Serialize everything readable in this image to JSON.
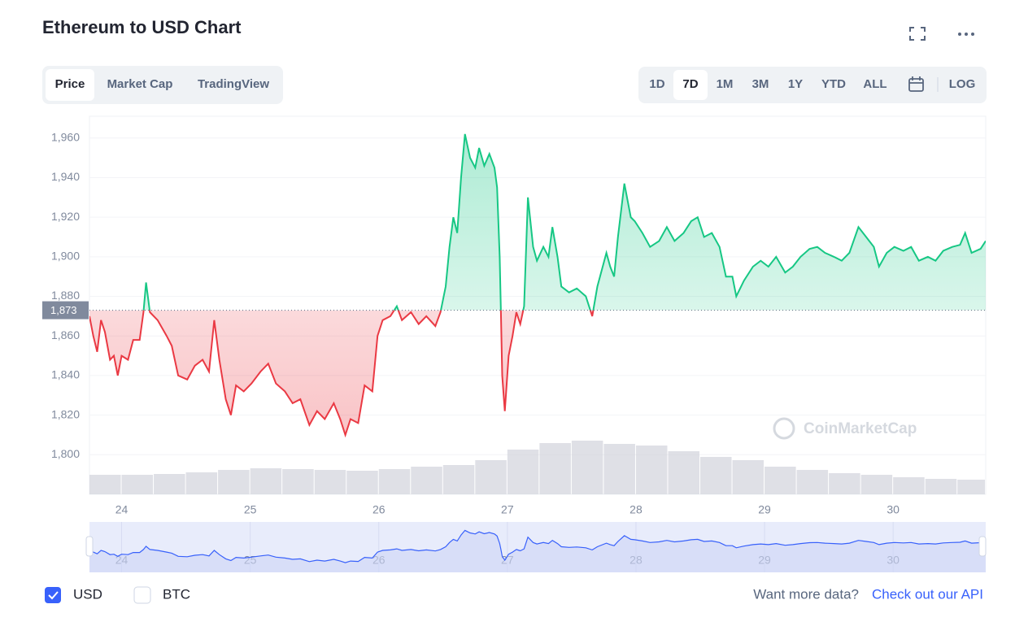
{
  "ui": {
    "title": "Ethereum to USD Chart",
    "tabs": [
      "Price",
      "Market Cap",
      "TradingView"
    ],
    "ranges": [
      "1D",
      "7D",
      "1M",
      "3M",
      "1Y",
      "YTD",
      "ALL"
    ],
    "log": "LOG",
    "currencies": [
      "USD",
      "BTC"
    ],
    "more_text": "Want more data?",
    "api_link": "Check out our API",
    "watermark": "CoinMarketCap"
  },
  "chart_data": {
    "type": "line",
    "series": [
      {
        "name": "Price",
        "x": [
          23.75,
          23.78,
          23.81,
          23.84,
          23.87,
          23.91,
          23.94,
          23.97,
          24.0,
          24.05,
          24.09,
          24.14,
          24.17,
          24.19,
          24.22,
          24.28,
          24.35,
          24.39,
          24.44,
          24.51,
          24.57,
          24.63,
          24.68,
          24.72,
          24.76,
          24.81,
          24.85,
          24.89,
          24.95,
          25.01,
          25.08,
          25.14,
          25.2,
          25.27,
          25.33,
          25.39,
          25.46,
          25.52,
          25.58,
          25.65,
          25.7,
          25.74,
          25.78,
          25.84,
          25.89,
          25.95,
          25.99,
          26.03,
          26.09,
          26.14,
          26.18,
          26.25,
          26.31,
          26.37,
          26.44,
          26.48,
          26.52,
          26.55,
          26.58,
          26.61,
          26.64,
          26.67,
          26.71,
          26.75,
          26.78,
          26.82,
          26.86,
          26.9,
          26.92,
          26.94,
          26.95,
          26.96,
          26.98,
          27.01,
          27.04,
          27.07,
          27.1,
          27.13,
          27.16,
          27.2,
          27.23,
          27.28,
          27.32,
          27.35,
          27.39,
          27.42,
          27.48,
          27.54,
          27.61,
          27.66,
          27.7,
          27.77,
          27.8,
          27.83,
          27.86,
          27.91,
          27.96,
          27.99,
          28.05,
          28.11,
          28.18,
          28.24,
          28.3,
          28.37,
          28.43,
          28.48,
          28.53,
          28.59,
          28.65,
          28.7,
          28.75,
          28.78,
          28.84,
          28.91,
          28.97,
          29.03,
          29.09,
          29.16,
          29.22,
          29.28,
          29.35,
          29.41,
          29.47,
          29.54,
          29.6,
          29.66,
          29.73,
          29.79,
          29.85,
          29.89,
          29.95,
          30.01,
          30.08,
          30.14,
          30.2,
          30.27,
          30.33,
          30.39,
          30.46,
          30.52,
          30.56,
          30.61,
          30.68,
          30.72
        ],
        "values": [
          1870,
          1860,
          1852,
          1868,
          1862,
          1848,
          1850,
          1840,
          1850,
          1848,
          1858,
          1858,
          1872,
          1887,
          1872,
          1868,
          1860,
          1855,
          1840,
          1838,
          1845,
          1848,
          1842,
          1868,
          1848,
          1828,
          1820,
          1835,
          1832,
          1836,
          1842,
          1846,
          1836,
          1832,
          1826,
          1828,
          1815,
          1822,
          1818,
          1826,
          1818,
          1810,
          1818,
          1816,
          1835,
          1832,
          1860,
          1868,
          1870,
          1875,
          1868,
          1872,
          1866,
          1870,
          1865,
          1872,
          1885,
          1905,
          1920,
          1912,
          1940,
          1962,
          1950,
          1945,
          1955,
          1946,
          1952,
          1945,
          1935,
          1900,
          1872,
          1840,
          1822,
          1850,
          1860,
          1872,
          1866,
          1875,
          1930,
          1905,
          1898,
          1905,
          1900,
          1915,
          1900,
          1885,
          1882,
          1884,
          1880,
          1870,
          1885,
          1902,
          1895,
          1890,
          1910,
          1937,
          1920,
          1918,
          1912,
          1905,
          1908,
          1915,
          1908,
          1912,
          1918,
          1920,
          1910,
          1912,
          1905,
          1890,
          1890,
          1880,
          1888,
          1895,
          1898,
          1895,
          1900,
          1892,
          1895,
          1900,
          1904,
          1905,
          1902,
          1900,
          1898,
          1902,
          1915,
          1910,
          1905,
          1895,
          1902,
          1905,
          1903,
          1905,
          1898,
          1900,
          1898,
          1903,
          1905,
          1906,
          1912,
          1902,
          1904,
          1908
        ]
      }
    ],
    "up_color": "#16c784",
    "down_color": "#ea3943",
    "reference": {
      "value": 1873,
      "label": "1,873"
    },
    "xlim": [
      23.75,
      30.72
    ],
    "xticks": [
      24,
      25,
      26,
      27,
      28,
      29,
      30
    ],
    "ylim": [
      1780,
      1971
    ],
    "yticks": [
      {
        "value": 1800,
        "label": "1,800"
      },
      {
        "value": 1820,
        "label": "1,820"
      },
      {
        "value": 1840,
        "label": "1,840"
      },
      {
        "value": 1860,
        "label": "1,860"
      },
      {
        "value": 1880,
        "label": "1,880"
      },
      {
        "value": 1900,
        "label": "1,900"
      },
      {
        "value": 1920,
        "label": "1,920"
      },
      {
        "value": 1940,
        "label": "1,940"
      },
      {
        "value": 1960,
        "label": "1,960"
      }
    ],
    "grid": true,
    "volume": {
      "x": [
        23.75,
        24,
        24.25,
        24.5,
        24.75,
        25,
        25.25,
        25.5,
        25.75,
        26,
        26.25,
        26.5,
        26.75,
        27,
        27.25,
        27.5,
        27.75,
        28,
        28.25,
        28.5,
        28.75,
        29,
        29.25,
        29.5,
        29.75,
        30,
        30.25,
        30.5
      ],
      "values": [
        24,
        24,
        25,
        27,
        30,
        32,
        31,
        30,
        29,
        31,
        34,
        36,
        42,
        55,
        63,
        66,
        62,
        60,
        53,
        46,
        42,
        34,
        30,
        26,
        24,
        21,
        19,
        18
      ],
      "ylim": [
        0,
        100
      ],
      "color": "#c9ccd6"
    }
  }
}
